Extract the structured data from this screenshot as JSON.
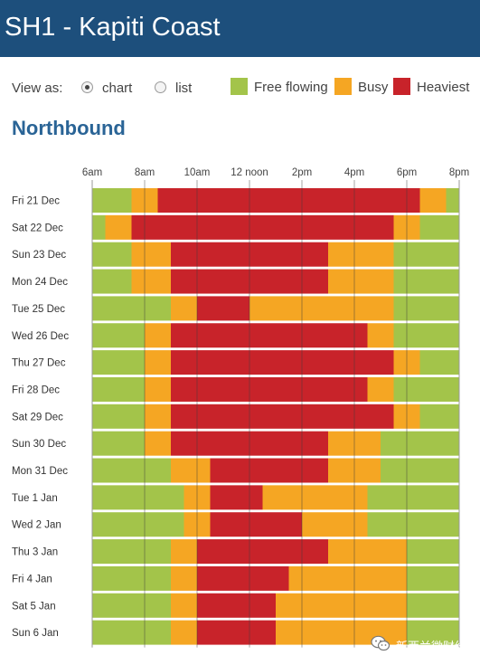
{
  "page": {
    "title": "SH1 - Kapiti Coast"
  },
  "view": {
    "label": "View as:",
    "options": [
      {
        "label": "chart",
        "selected": true
      },
      {
        "label": "list",
        "selected": false
      }
    ]
  },
  "legend": [
    {
      "label": "Free flowing",
      "color": "#a3c44a"
    },
    {
      "label": "Busy",
      "color": "#f5a623"
    },
    {
      "label": "Heaviest",
      "color": "#c8232a"
    }
  ],
  "section": {
    "heading": "Northbound"
  },
  "chart_data": {
    "type": "gantt",
    "title": "Northbound",
    "x_ticks": [
      {
        "hour": 6,
        "label": "6am"
      },
      {
        "hour": 8,
        "label": "8am"
      },
      {
        "hour": 10,
        "label": "10am"
      },
      {
        "hour": 12,
        "label": "12 noon"
      },
      {
        "hour": 14,
        "label": "2pm"
      },
      {
        "hour": 16,
        "label": "4pm"
      },
      {
        "hour": 18,
        "label": "6pm"
      },
      {
        "hour": 20,
        "label": "8pm"
      }
    ],
    "x_range_hours": [
      6,
      20
    ],
    "grid": true,
    "categories": [
      "Free flowing",
      "Busy",
      "Heaviest"
    ],
    "rows": [
      {
        "label": "Fri 21 Dec",
        "segments": [
          [
            6,
            7.5,
            "Free flowing"
          ],
          [
            7.5,
            8.5,
            "Busy"
          ],
          [
            8.5,
            18.5,
            "Heaviest"
          ],
          [
            18.5,
            19.5,
            "Busy"
          ],
          [
            19.5,
            20,
            "Free flowing"
          ]
        ]
      },
      {
        "label": "Sat 22 Dec",
        "segments": [
          [
            6,
            6.5,
            "Free flowing"
          ],
          [
            6.5,
            7.5,
            "Busy"
          ],
          [
            7.5,
            17.5,
            "Heaviest"
          ],
          [
            17.5,
            18.5,
            "Busy"
          ],
          [
            18.5,
            20,
            "Free flowing"
          ]
        ]
      },
      {
        "label": "Sun 23 Dec",
        "segments": [
          [
            6,
            7.5,
            "Free flowing"
          ],
          [
            7.5,
            9,
            "Busy"
          ],
          [
            9,
            15,
            "Heaviest"
          ],
          [
            15,
            17.5,
            "Busy"
          ],
          [
            17.5,
            20,
            "Free flowing"
          ]
        ]
      },
      {
        "label": "Mon 24 Dec",
        "segments": [
          [
            6,
            7.5,
            "Free flowing"
          ],
          [
            7.5,
            9,
            "Busy"
          ],
          [
            9,
            15,
            "Heaviest"
          ],
          [
            15,
            17.5,
            "Busy"
          ],
          [
            17.5,
            20,
            "Free flowing"
          ]
        ]
      },
      {
        "label": "Tue 25 Dec",
        "segments": [
          [
            6,
            9,
            "Free flowing"
          ],
          [
            9,
            10,
            "Busy"
          ],
          [
            10,
            12,
            "Heaviest"
          ],
          [
            12,
            17.5,
            "Busy"
          ],
          [
            17.5,
            20,
            "Free flowing"
          ]
        ]
      },
      {
        "label": "Wed 26 Dec",
        "segments": [
          [
            6,
            8,
            "Free flowing"
          ],
          [
            8,
            9,
            "Busy"
          ],
          [
            9,
            16.5,
            "Heaviest"
          ],
          [
            16.5,
            17.5,
            "Busy"
          ],
          [
            17.5,
            20,
            "Free flowing"
          ]
        ]
      },
      {
        "label": "Thu 27 Dec",
        "segments": [
          [
            6,
            8,
            "Free flowing"
          ],
          [
            8,
            9,
            "Busy"
          ],
          [
            9,
            17.5,
            "Heaviest"
          ],
          [
            17.5,
            18.5,
            "Busy"
          ],
          [
            18.5,
            20,
            "Free flowing"
          ]
        ]
      },
      {
        "label": "Fri 28 Dec",
        "segments": [
          [
            6,
            8,
            "Free flowing"
          ],
          [
            8,
            9,
            "Busy"
          ],
          [
            9,
            16.5,
            "Heaviest"
          ],
          [
            16.5,
            17.5,
            "Busy"
          ],
          [
            17.5,
            20,
            "Free flowing"
          ]
        ]
      },
      {
        "label": "Sat 29 Dec",
        "segments": [
          [
            6,
            8,
            "Free flowing"
          ],
          [
            8,
            9,
            "Busy"
          ],
          [
            9,
            17.5,
            "Heaviest"
          ],
          [
            17.5,
            18.5,
            "Busy"
          ],
          [
            18.5,
            20,
            "Free flowing"
          ]
        ]
      },
      {
        "label": "Sun 30 Dec",
        "segments": [
          [
            6,
            8,
            "Free flowing"
          ],
          [
            8,
            9,
            "Busy"
          ],
          [
            9,
            15,
            "Heaviest"
          ],
          [
            15,
            17,
            "Busy"
          ],
          [
            17,
            20,
            "Free flowing"
          ]
        ]
      },
      {
        "label": "Mon 31 Dec",
        "segments": [
          [
            6,
            9,
            "Free flowing"
          ],
          [
            9,
            10.5,
            "Busy"
          ],
          [
            10.5,
            15,
            "Heaviest"
          ],
          [
            15,
            17,
            "Busy"
          ],
          [
            17,
            20,
            "Free flowing"
          ]
        ]
      },
      {
        "label": "Tue 1 Jan",
        "segments": [
          [
            6,
            9.5,
            "Free flowing"
          ],
          [
            9.5,
            10.5,
            "Busy"
          ],
          [
            10.5,
            12.5,
            "Heaviest"
          ],
          [
            12.5,
            16.5,
            "Busy"
          ],
          [
            16.5,
            20,
            "Free flowing"
          ]
        ]
      },
      {
        "label": "Wed 2 Jan",
        "segments": [
          [
            6,
            9.5,
            "Free flowing"
          ],
          [
            9.5,
            10.5,
            "Busy"
          ],
          [
            10.5,
            14,
            "Heaviest"
          ],
          [
            14,
            16.5,
            "Busy"
          ],
          [
            16.5,
            20,
            "Free flowing"
          ]
        ]
      },
      {
        "label": "Thu 3 Jan",
        "segments": [
          [
            6,
            9,
            "Free flowing"
          ],
          [
            9,
            10,
            "Busy"
          ],
          [
            10,
            15,
            "Heaviest"
          ],
          [
            15,
            18,
            "Busy"
          ],
          [
            18,
            20,
            "Free flowing"
          ]
        ]
      },
      {
        "label": "Fri 4 Jan",
        "segments": [
          [
            6,
            9,
            "Free flowing"
          ],
          [
            9,
            10,
            "Busy"
          ],
          [
            10,
            13.5,
            "Heaviest"
          ],
          [
            13.5,
            18,
            "Busy"
          ],
          [
            18,
            20,
            "Free flowing"
          ]
        ]
      },
      {
        "label": "Sat 5 Jan",
        "segments": [
          [
            6,
            9,
            "Free flowing"
          ],
          [
            9,
            10,
            "Busy"
          ],
          [
            10,
            13,
            "Heaviest"
          ],
          [
            13,
            18,
            "Busy"
          ],
          [
            18,
            20,
            "Free flowing"
          ]
        ]
      },
      {
        "label": "Sun 6 Jan",
        "segments": [
          [
            6,
            9,
            "Free flowing"
          ],
          [
            9,
            10,
            "Busy"
          ],
          [
            10,
            13,
            "Heaviest"
          ],
          [
            13,
            18,
            "Busy"
          ],
          [
            18,
            20,
            "Free flowing"
          ]
        ]
      }
    ]
  },
  "watermark": {
    "text": "新西兰微财经",
    "icon": "wechat-icon"
  }
}
